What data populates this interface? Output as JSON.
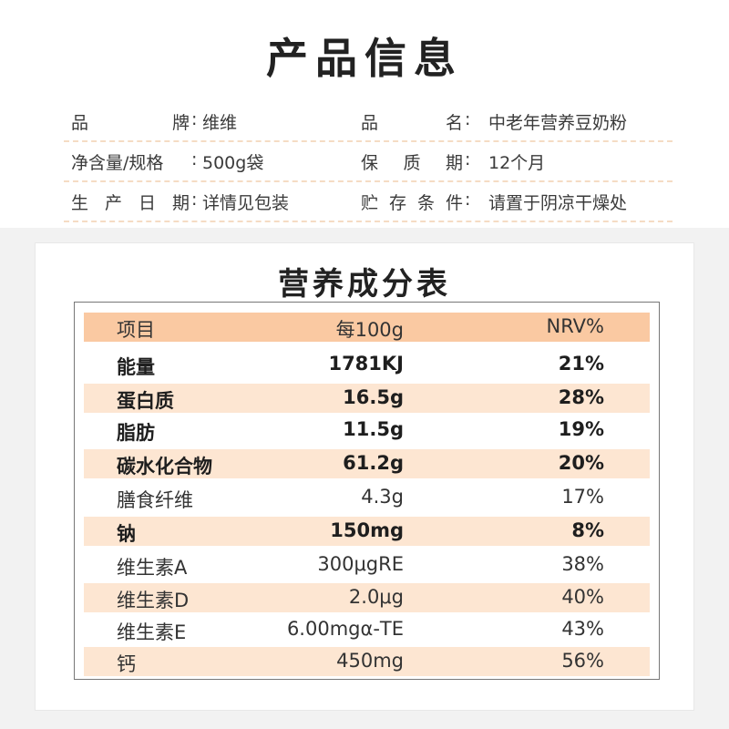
{
  "product_info": {
    "title": "产品信息",
    "rows": [
      {
        "label1": "品牌",
        "value1": "维维",
        "label2": "品名",
        "value2": "中老年营养豆奶粉"
      },
      {
        "label1": "净含量/规格",
        "value1": "500g袋",
        "label2": "保质期",
        "value2": "12个月"
      },
      {
        "label1": "生产日期",
        "value1": "详情见包装",
        "label2": "贮存条件",
        "value2": "请置于阴凉干燥处"
      }
    ],
    "separator": ":"
  },
  "nutrition": {
    "title": "营养成分表",
    "header": {
      "item": "项目",
      "per100g": "每100g",
      "nrv": "NRV%"
    },
    "rows": [
      {
        "item": "能量",
        "per100g": "1781KJ",
        "nrv": "21%",
        "bold": true
      },
      {
        "item": "蛋白质",
        "per100g": "16.5g",
        "nrv": "28%",
        "bold": true
      },
      {
        "item": "脂肪",
        "per100g": "11.5g",
        "nrv": "19%",
        "bold": true
      },
      {
        "item": "碳水化合物",
        "per100g": "61.2g",
        "nrv": "20%",
        "bold": true
      },
      {
        "item": "膳食纤维",
        "per100g": "4.3g",
        "nrv": "17%",
        "bold": false
      },
      {
        "item": "钠",
        "per100g": "150mg",
        "nrv": "8%",
        "bold": true
      },
      {
        "item": "维生素A",
        "per100g": "300μgRE",
        "nrv": "38%",
        "bold": false
      },
      {
        "item": "维生素D",
        "per100g": "2.0μg",
        "nrv": "40%",
        "bold": false
      },
      {
        "item": "维生素E",
        "per100g": "6.00mgα-TE",
        "nrv": "43%",
        "bold": false
      },
      {
        "item": "钙",
        "per100g": "450mg",
        "nrv": "56%",
        "bold": false
      }
    ]
  },
  "colors": {
    "header_row": "#fac9a2",
    "shaded_row": "#fde6d2",
    "dashed_line": "#f5dcc4",
    "background_grey": "#f2f2f2"
  }
}
